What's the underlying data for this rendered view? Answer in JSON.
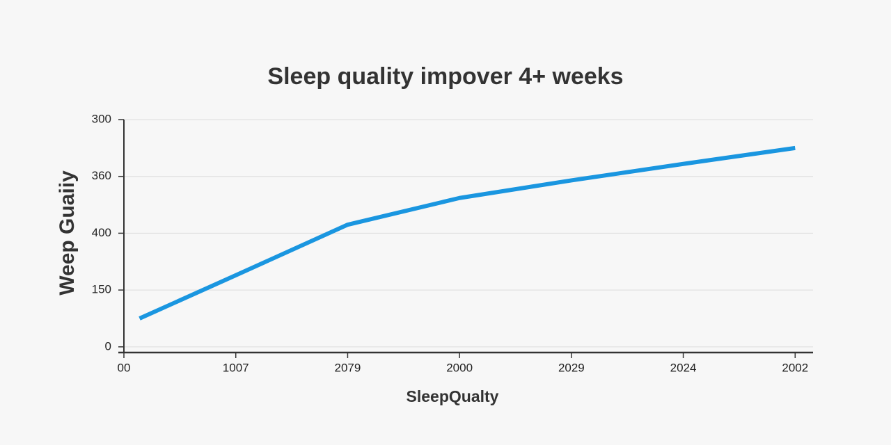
{
  "chart_data": {
    "type": "line",
    "title": "Sleep quality impover 4+ weeks",
    "x_label": "SleepQualty",
    "y_label": "Weep Guaiiy",
    "x": [
      0.14,
      1,
      2,
      3,
      4,
      5,
      6
    ],
    "series": [
      {
        "name": "Sleep quality",
        "color": "#1a96e0",
        "values": [
          0.5,
          1.26,
          2.15,
          2.62,
          2.93,
          3.22,
          3.5
        ]
      }
    ],
    "xlim": [
      0,
      6.16
    ],
    "xticks": [
      {
        "value": 0,
        "label": "00"
      },
      {
        "value": 1,
        "label": "1007"
      },
      {
        "value": 2,
        "label": "2079"
      },
      {
        "value": 3,
        "label": "2000"
      },
      {
        "value": 4,
        "label": "2029"
      },
      {
        "value": 5,
        "label": "2024"
      },
      {
        "value": 6,
        "label": "2002"
      }
    ],
    "ylim": [
      -0.1,
      4
    ],
    "yticks": [
      {
        "value": 0,
        "label": "0"
      },
      {
        "value": 1,
        "label": "150"
      },
      {
        "value": 2,
        "label": "400"
      },
      {
        "value": 3,
        "label": "360"
      },
      {
        "value": 4,
        "label": "300"
      }
    ],
    "grid": true
  }
}
